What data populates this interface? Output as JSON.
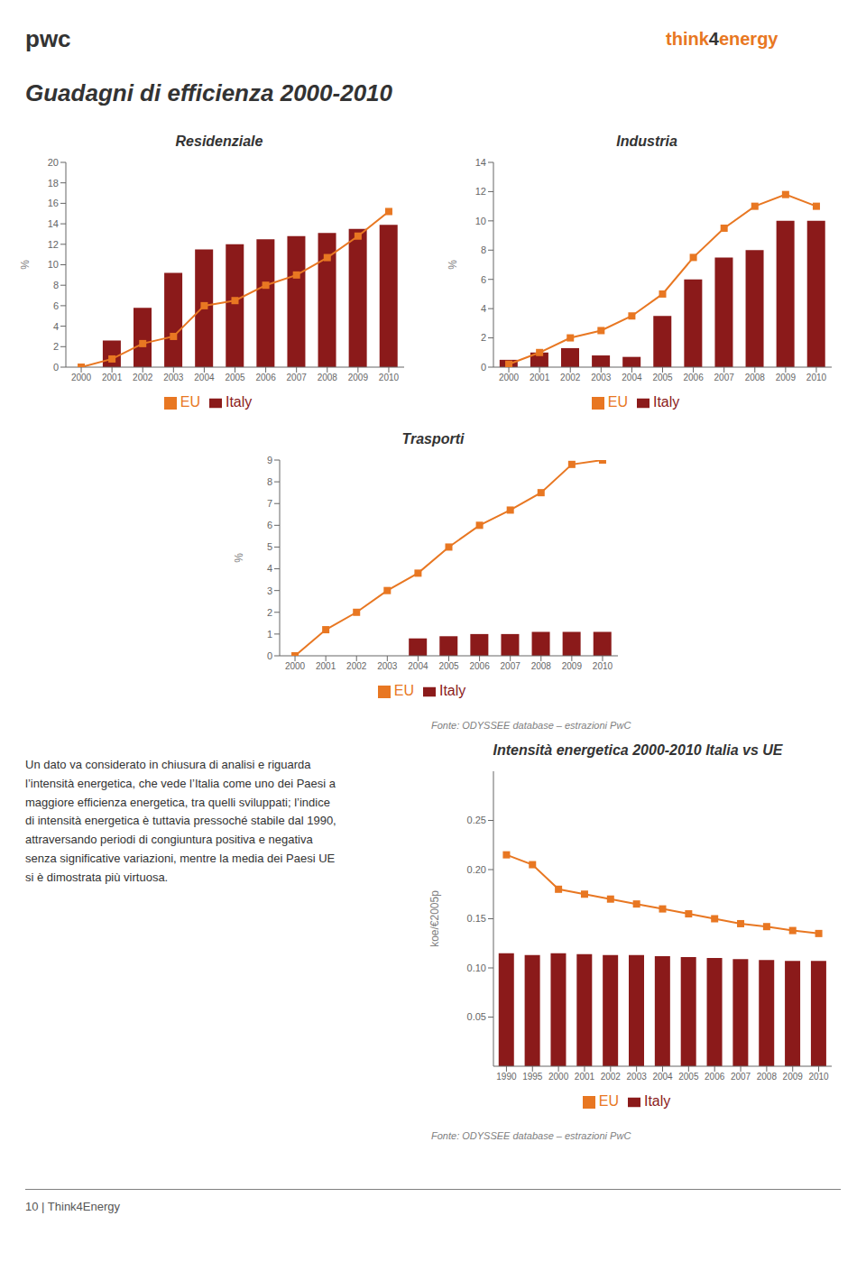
{
  "title": "Guadagni di efficienza 2000-2010",
  "annotations": [
    "pwc",
    "think",
    "4",
    "energy",
    "Fonte: ODYSSEE database – estrazioni PwC",
    "Fonte: ODYSSEE database – estrazioni PwC",
    "Un dato va considerato in chiusura di analisi e riguarda\nl’intensità energetica, che vede l’Italia come uno dei Paesi a\nmaggiore efficienza energetica, tra quelli sviluppati; l’indice\ndi intensità energetica è tuttavia pressoché stabile dal 1990,\nattraversando periodi di congiuntura positiva e negativa\nsenza significative variazioni, mentre la media dei Paesi UE\nsi è dimostrata più virtuosa.",
    "10 | Think4Energy"
  ],
  "chart_data": [
    {
      "type": "bar",
      "title": "Residenziale",
      "ylabel": "%",
      "categories": [
        2000,
        2001,
        2002,
        2003,
        2004,
        2005,
        2006,
        2007,
        2008,
        2009,
        2010
      ],
      "series": [
        {
          "name": "Italy",
          "type": "bar",
          "color": "#8B1A1A",
          "values": [
            0,
            2.6,
            5.8,
            9.2,
            11.5,
            12.0,
            12.5,
            12.8,
            13.1,
            13.5,
            13.9
          ]
        },
        {
          "name": "EU",
          "type": "line",
          "color": "#E87722",
          "marker": "square",
          "values": [
            0.0,
            0.8,
            2.3,
            3.0,
            6.0,
            6.5,
            8.0,
            9.0,
            10.7,
            12.8,
            15.2
          ]
        }
      ],
      "ylim": [
        0,
        20
      ],
      "yticks": [
        0,
        2,
        4,
        6,
        8,
        10,
        12,
        14,
        16,
        18,
        20
      ],
      "grid": false,
      "legend": "bottom"
    },
    {
      "type": "bar",
      "title": "Industria",
      "ylabel": "%",
      "categories": [
        2000,
        2001,
        2002,
        2003,
        2004,
        2005,
        2006,
        2007,
        2008,
        2009,
        2010
      ],
      "series": [
        {
          "name": "Italy",
          "type": "bar",
          "color": "#8B1A1A",
          "values": [
            0.5,
            1.0,
            1.3,
            0.8,
            0.7,
            3.5,
            6.0,
            7.5,
            8.0,
            10.0,
            10.0
          ]
        },
        {
          "name": "EU",
          "type": "line",
          "color": "#E87722",
          "marker": "square",
          "values": [
            0.2,
            1.0,
            2.0,
            2.5,
            3.5,
            5.0,
            7.5,
            9.5,
            11.0,
            11.8,
            11.0
          ]
        }
      ],
      "ylim": [
        0,
        14
      ],
      "yticks": [
        0,
        2,
        4,
        6,
        8,
        10,
        12,
        14
      ],
      "grid": false,
      "legend": "bottom"
    },
    {
      "type": "bar",
      "title": "Trasporti",
      "ylabel": "%",
      "categories": [
        2000,
        2001,
        2002,
        2003,
        2004,
        2005,
        2006,
        2007,
        2008,
        2009,
        2010
      ],
      "series": [
        {
          "name": "Italy",
          "type": "bar",
          "color": "#8B1A1A",
          "values": [
            0,
            0,
            0,
            0,
            0.8,
            0.9,
            1.0,
            1.0,
            1.1,
            1.1,
            1.1
          ]
        },
        {
          "name": "EU",
          "type": "line",
          "color": "#E87722",
          "marker": "square",
          "values": [
            0.0,
            1.2,
            2.0,
            3.0,
            3.8,
            5.0,
            6.0,
            6.7,
            7.5,
            8.8,
            9.0
          ]
        }
      ],
      "ylim": [
        0,
        9
      ],
      "yticks": [
        0,
        1,
        2,
        3,
        4,
        5,
        6,
        7,
        8,
        9
      ],
      "grid": false,
      "legend": "bottom"
    },
    {
      "type": "bar",
      "title": "Intensità energetica 2000-2010 Italia vs UE",
      "ylabel": "koe/€2005p",
      "categories": [
        1990,
        1995,
        2000,
        2001,
        2002,
        2003,
        2004,
        2005,
        2006,
        2007,
        2008,
        2009,
        2010
      ],
      "series": [
        {
          "name": "Italy",
          "type": "bar",
          "color": "#8B1A1A",
          "values": [
            0.115,
            0.113,
            0.115,
            0.114,
            0.113,
            0.113,
            0.112,
            0.111,
            0.11,
            0.109,
            0.108,
            0.107,
            0.107
          ]
        },
        {
          "name": "EU",
          "type": "line",
          "color": "#E87722",
          "marker": "square",
          "values": [
            0.215,
            0.205,
            0.18,
            0.175,
            0.17,
            0.165,
            0.16,
            0.155,
            0.15,
            0.145,
            0.142,
            0.138,
            0.135
          ]
        }
      ],
      "ylim": [
        0,
        0.3
      ],
      "yticks": [
        0.05,
        {
          "value": 0.1,
          "label": "0.10"
        },
        0.15,
        {
          "value": 0.2,
          "label": "0.20"
        },
        0.25
      ],
      "grid": false,
      "legend": "bottom"
    }
  ]
}
